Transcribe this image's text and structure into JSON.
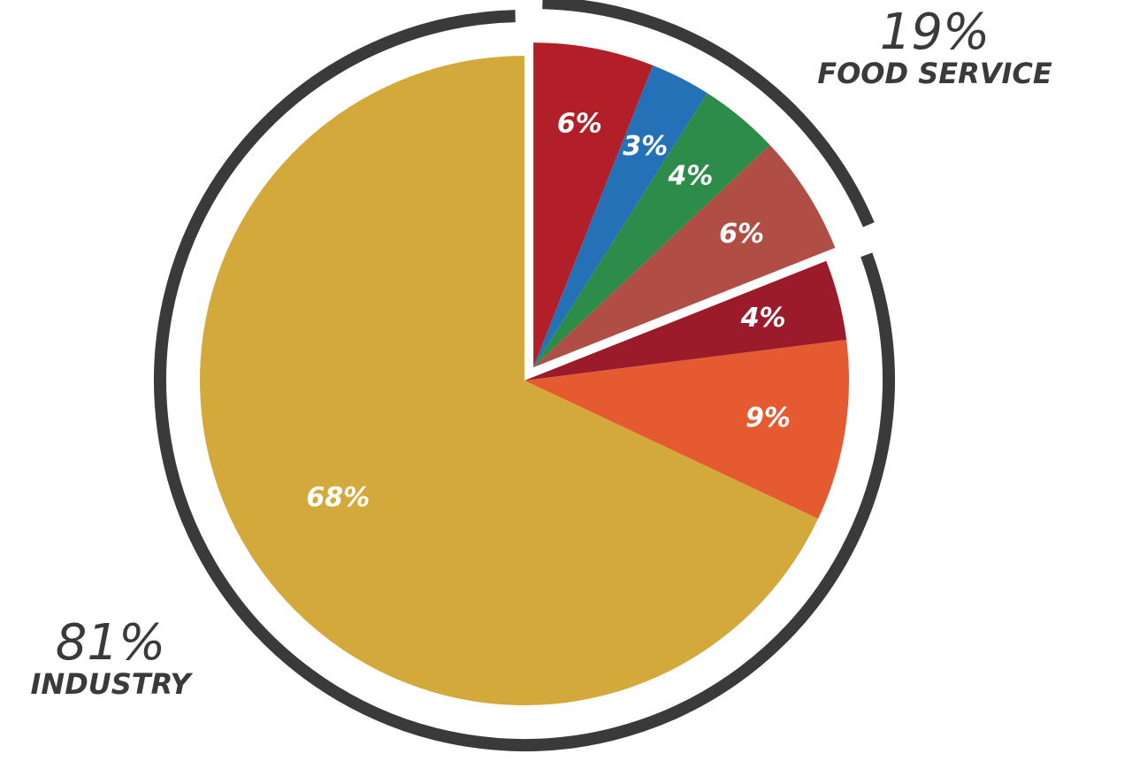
{
  "chart_data": {
    "type": "pie",
    "values": [
      6,
      3,
      4,
      6,
      4,
      9,
      68
    ],
    "value_labels": [
      "6%",
      "3%",
      "4%",
      "6%",
      "4%",
      "9%",
      "68%"
    ],
    "colors": [
      "#b31f29",
      "#2471b8",
      "#2e8c4a",
      "#b04d44",
      "#9b1b2a",
      "#e55a30",
      "#d4a93b"
    ],
    "groups": {
      "names": [
        "FOOD SERVICE",
        "INDUSTRY"
      ],
      "values": [
        19,
        81
      ],
      "value_labels": [
        "19%",
        "81%"
      ]
    }
  }
}
